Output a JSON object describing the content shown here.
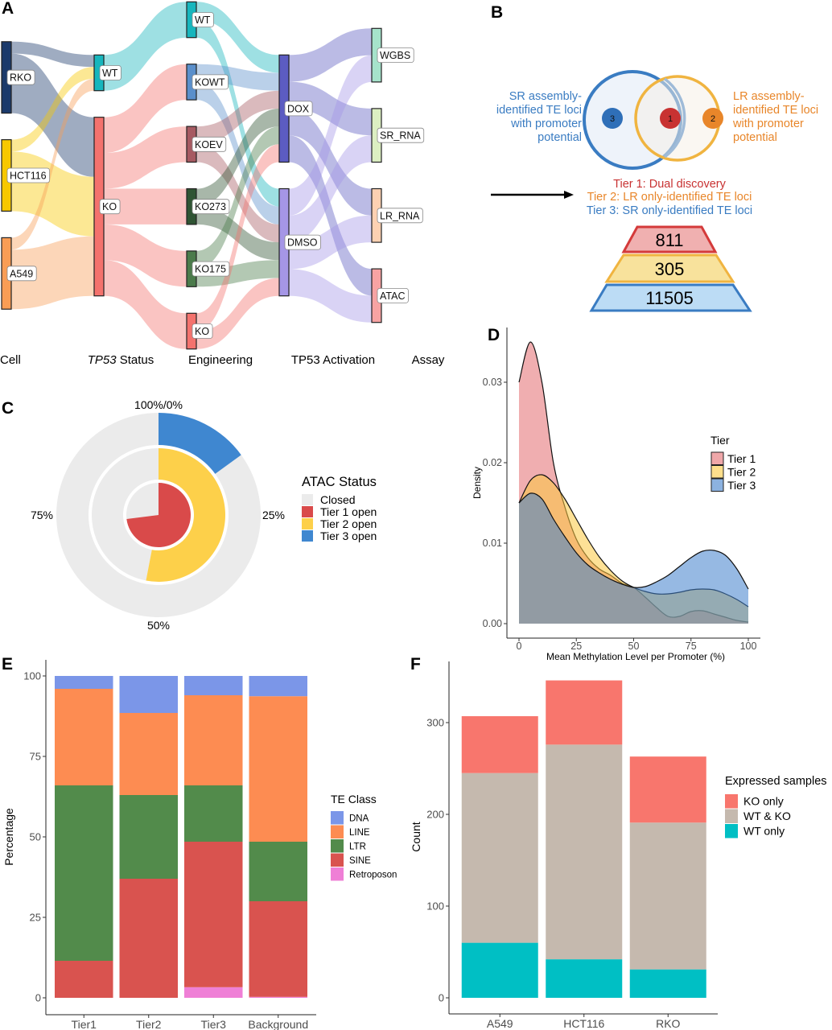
{
  "panel_letters": {
    "a": "A",
    "b": "B",
    "c": "C",
    "d": "D",
    "e": "E",
    "f": "F"
  },
  "panel_a": {
    "column_titles": [
      {
        "italic": "",
        "text": "Cell"
      },
      {
        "italic": "TP53",
        "text": " Status"
      },
      {
        "italic": "",
        "text": "Engineering"
      },
      {
        "italic": "",
        "text": "TP53 Activation"
      },
      {
        "italic": "",
        "text": "Assay"
      }
    ],
    "nodes": [
      {
        "id": "RKO",
        "label": "RKO",
        "col": 0,
        "color": "#1b3a6b"
      },
      {
        "id": "HCT116",
        "label": "HCT116",
        "col": 0,
        "color": "#f7c800"
      },
      {
        "id": "A549",
        "label": "A549",
        "col": 0,
        "color": "#f99d55"
      },
      {
        "id": "S_WT",
        "label": "WT",
        "col": 1,
        "color": "#17b6bd"
      },
      {
        "id": "S_KO",
        "label": "KO",
        "col": 1,
        "color": "#f4726d"
      },
      {
        "id": "E_WT",
        "label": "WT",
        "col": 2,
        "color": "#17b6bd"
      },
      {
        "id": "E_KOWT",
        "label": "KOWT",
        "col": 2,
        "color": "#5a8fcb"
      },
      {
        "id": "E_KOEV",
        "label": "KOEV",
        "col": 2,
        "color": "#a65a62"
      },
      {
        "id": "E_KO273",
        "label": "KO273",
        "col": 2,
        "color": "#2f5433"
      },
      {
        "id": "E_KO175",
        "label": "KO175",
        "col": 2,
        "color": "#4b7b4b"
      },
      {
        "id": "E_KO",
        "label": "KO",
        "col": 2,
        "color": "#f4726d"
      },
      {
        "id": "DOX",
        "label": "DOX",
        "col": 3,
        "color": "#5c5cc2"
      },
      {
        "id": "DMSO",
        "label": "DMSO",
        "col": 3,
        "color": "#a596e6"
      },
      {
        "id": "WGBS",
        "label": "WGBS",
        "col": 4,
        "color": "#a6e3cb"
      },
      {
        "id": "SR_RNA",
        "label": "SR_RNA",
        "col": 4,
        "color": "#dcefc2"
      },
      {
        "id": "LR_RNA",
        "label": "LR_RNA",
        "col": 4,
        "color": "#fdd1b2"
      },
      {
        "id": "ATAC",
        "label": "ATAC",
        "col": 4,
        "color": "#f7a3a3"
      }
    ],
    "links": [
      [
        "RKO",
        "S_WT",
        1
      ],
      [
        "RKO",
        "S_KO",
        5
      ],
      [
        "HCT116",
        "S_WT",
        1
      ],
      [
        "HCT116",
        "S_KO",
        5
      ],
      [
        "A549",
        "S_WT",
        1
      ],
      [
        "A549",
        "S_KO",
        5
      ],
      [
        "S_WT",
        "E_WT",
        3
      ],
      [
        "S_KO",
        "E_KOWT",
        3
      ],
      [
        "S_KO",
        "E_KOEV",
        3
      ],
      [
        "S_KO",
        "E_KO273",
        3
      ],
      [
        "S_KO",
        "E_KO175",
        3
      ],
      [
        "S_KO",
        "E_KO",
        3
      ],
      [
        "E_WT",
        "DOX",
        1.5
      ],
      [
        "E_WT",
        "DMSO",
        1.5
      ],
      [
        "E_KOWT",
        "DOX",
        1.5
      ],
      [
        "E_KOWT",
        "DMSO",
        1.5
      ],
      [
        "E_KOEV",
        "DOX",
        1.5
      ],
      [
        "E_KOEV",
        "DMSO",
        1.5
      ],
      [
        "E_KO273",
        "DOX",
        1.5
      ],
      [
        "E_KO273",
        "DMSO",
        1.5
      ],
      [
        "E_KO175",
        "DOX",
        1.5
      ],
      [
        "E_KO175",
        "DMSO",
        1.5
      ],
      [
        "E_KO",
        "DOX",
        1.5
      ],
      [
        "E_KO",
        "DMSO",
        1.5
      ],
      [
        "DOX",
        "WGBS",
        2.25
      ],
      [
        "DOX",
        "SR_RNA",
        2.25
      ],
      [
        "DOX",
        "LR_RNA",
        2.25
      ],
      [
        "DOX",
        "ATAC",
        2.25
      ],
      [
        "DMSO",
        "WGBS",
        2.25
      ],
      [
        "DMSO",
        "SR_RNA",
        2.25
      ],
      [
        "DMSO",
        "LR_RNA",
        2.25
      ],
      [
        "DMSO",
        "ATAC",
        2.25
      ]
    ]
  },
  "panel_b": {
    "left_label": [
      "SR assembly-",
      "identified TE loci",
      "with promoter",
      "potential"
    ],
    "right_label": [
      "LR assembly-",
      "identified TE loci",
      "with promoter",
      "potential"
    ],
    "venn_markers": [
      "3",
      "1",
      "2"
    ],
    "tiers": [
      "Tier 1: Dual discovery",
      "Tier 2: LR only-identified TE loci",
      "Tier 3: SR only-identified TE loci"
    ],
    "pyramid": [
      "811",
      "305",
      "11505"
    ],
    "colors": {
      "sr": "#3a7cc2",
      "lr": "#e8862a",
      "tier1": "#c83232"
    }
  },
  "chart_data": [
    {
      "panel": "C",
      "type": "pie",
      "subtype": "concentric-rings",
      "axis_labels": [
        "100%/0%",
        "25%",
        "50%",
        "75%"
      ],
      "legend_title": "ATAC Status",
      "legend": [
        {
          "name": "Closed",
          "color": "#ebebeb"
        },
        {
          "name": "Tier 1 open",
          "color": "#d94a4a"
        },
        {
          "name": "Tier 2 open",
          "color": "#fdd04a"
        },
        {
          "name": "Tier 3 open",
          "color": "#3f87d0"
        }
      ],
      "rings": [
        {
          "ring": "inner",
          "series": "Tier 1 open",
          "open_percent": 73
        },
        {
          "ring": "middle",
          "series": "Tier 2 open",
          "open_percent": 53
        },
        {
          "ring": "outer",
          "series": "Tier 3 open",
          "open_percent": 15
        }
      ]
    },
    {
      "panel": "D",
      "type": "area",
      "subtype": "density",
      "xlabel": "Mean Methylation Level per Promoter (%)",
      "ylabel": "Density",
      "xlim": [
        0,
        100
      ],
      "ylim": [
        0,
        0.035
      ],
      "xticks": [
        "0",
        "25",
        "50",
        "75",
        "100"
      ],
      "yticks": [
        "0.00",
        "0.01",
        "0.02",
        "0.03"
      ],
      "legend_title": "Tier",
      "x": [
        0,
        5,
        10,
        15,
        20,
        25,
        30,
        35,
        40,
        45,
        50,
        55,
        60,
        65,
        70,
        75,
        80,
        85,
        90,
        95,
        100
      ],
      "series": [
        {
          "name": "Tier 1",
          "color": "#e46c70",
          "values": [
            0.03,
            0.035,
            0.03,
            0.02,
            0.0145,
            0.0105,
            0.0082,
            0.0068,
            0.006,
            0.005,
            0.0045,
            0.0033,
            0.002,
            0.0009,
            0.0009,
            0.0015,
            0.0016,
            0.0012,
            0.0008,
            0.0004,
            0.0002
          ]
        },
        {
          "name": "Tier 2",
          "color": "#fcc93f",
          "values": [
            0.015,
            0.0178,
            0.0185,
            0.0175,
            0.0155,
            0.013,
            0.0105,
            0.0083,
            0.0066,
            0.0053,
            0.0045,
            0.004,
            0.0037,
            0.0037,
            0.0039,
            0.0042,
            0.0043,
            0.0042,
            0.0037,
            0.003,
            0.0021
          ]
        },
        {
          "name": "Tier 3",
          "color": "#3f7fcc",
          "values": [
            0.015,
            0.0162,
            0.0155,
            0.013,
            0.0108,
            0.0088,
            0.0073,
            0.0063,
            0.0055,
            0.0049,
            0.0045,
            0.0046,
            0.0052,
            0.006,
            0.0071,
            0.0082,
            0.009,
            0.0091,
            0.0085,
            0.0068,
            0.0043
          ]
        }
      ]
    },
    {
      "panel": "E",
      "type": "bar",
      "subtype": "stacked-percent",
      "ylabel": "Percentage",
      "ylim": [
        0,
        100
      ],
      "yticks": [
        "0",
        "25",
        "50",
        "75",
        "100"
      ],
      "categories": [
        "Tier1",
        "Tier2",
        "Tier3",
        "Background"
      ],
      "legend_title": "TE Class",
      "series": [
        {
          "name": "DNA",
          "color": "#7b96e8",
          "values": [
            4,
            11.5,
            6,
            6.3
          ]
        },
        {
          "name": "LINE",
          "color": "#fd8c52",
          "values": [
            30,
            25.5,
            28,
            45.2
          ]
        },
        {
          "name": "LTR",
          "color": "#528b4b",
          "values": [
            54.5,
            26,
            17.5,
            18.5
          ]
        },
        {
          "name": "SINE",
          "color": "#d9534f",
          "values": [
            11.5,
            37,
            45.2,
            29.7
          ]
        },
        {
          "name": "Retroposon",
          "color": "#ef7fd6",
          "values": [
            0,
            0,
            3.3,
            0.3
          ]
        }
      ]
    },
    {
      "panel": "F",
      "type": "bar",
      "subtype": "stacked",
      "ylabel": "Count",
      "ylim": [
        0,
        350
      ],
      "yticks": [
        "0",
        "100",
        "200",
        "300"
      ],
      "categories": [
        "A549",
        "HCT116",
        "RKO"
      ],
      "legend_title": "Expressed samples",
      "series": [
        {
          "name": "KO only",
          "color": "#f8766d",
          "values": [
            62,
            70,
            72
          ]
        },
        {
          "name": "WT & KO",
          "color": "#c5b9ae",
          "values": [
            185,
            234,
            160
          ]
        },
        {
          "name": "WT only",
          "color": "#00bfc4",
          "values": [
            60,
            42,
            31
          ]
        }
      ]
    }
  ]
}
